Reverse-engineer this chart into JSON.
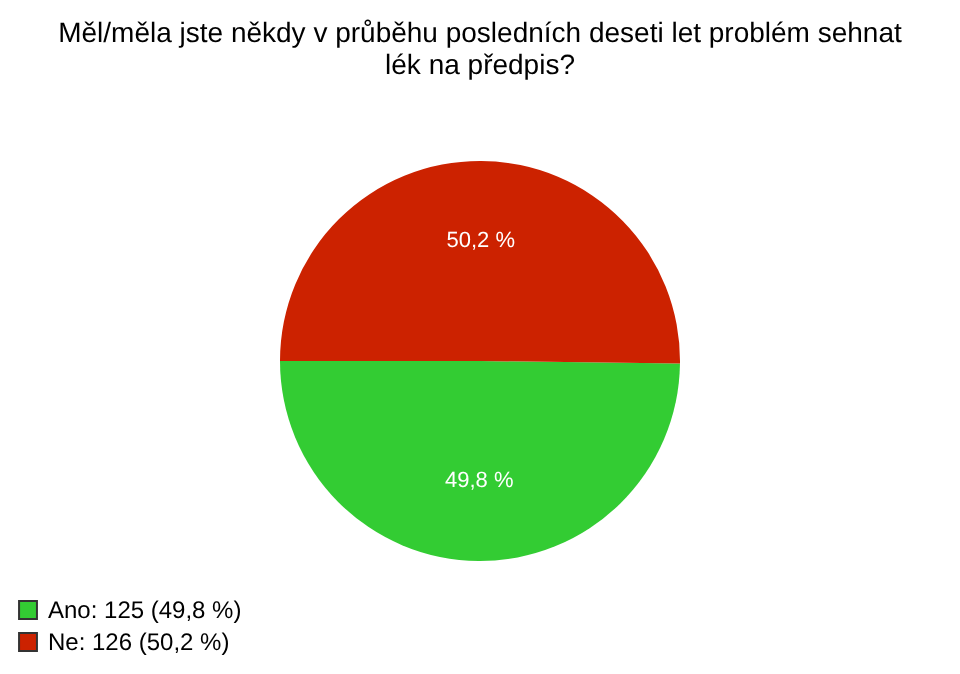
{
  "chart_data": {
    "type": "pie",
    "title": "Měl/měla jste někdy v průběhu posledních deseti let problém sehnat lék na předpis?",
    "categories": [
      "Ano: 125 (49,8 %)",
      "Ne: 126 (50,2 %)"
    ],
    "values": [
      49.8,
      50.2
    ],
    "colors": [
      "#33cc33",
      "#cc2200"
    ],
    "value_labels": [
      "49,8 %",
      "50,2 %"
    ],
    "legend": "bottom left"
  }
}
